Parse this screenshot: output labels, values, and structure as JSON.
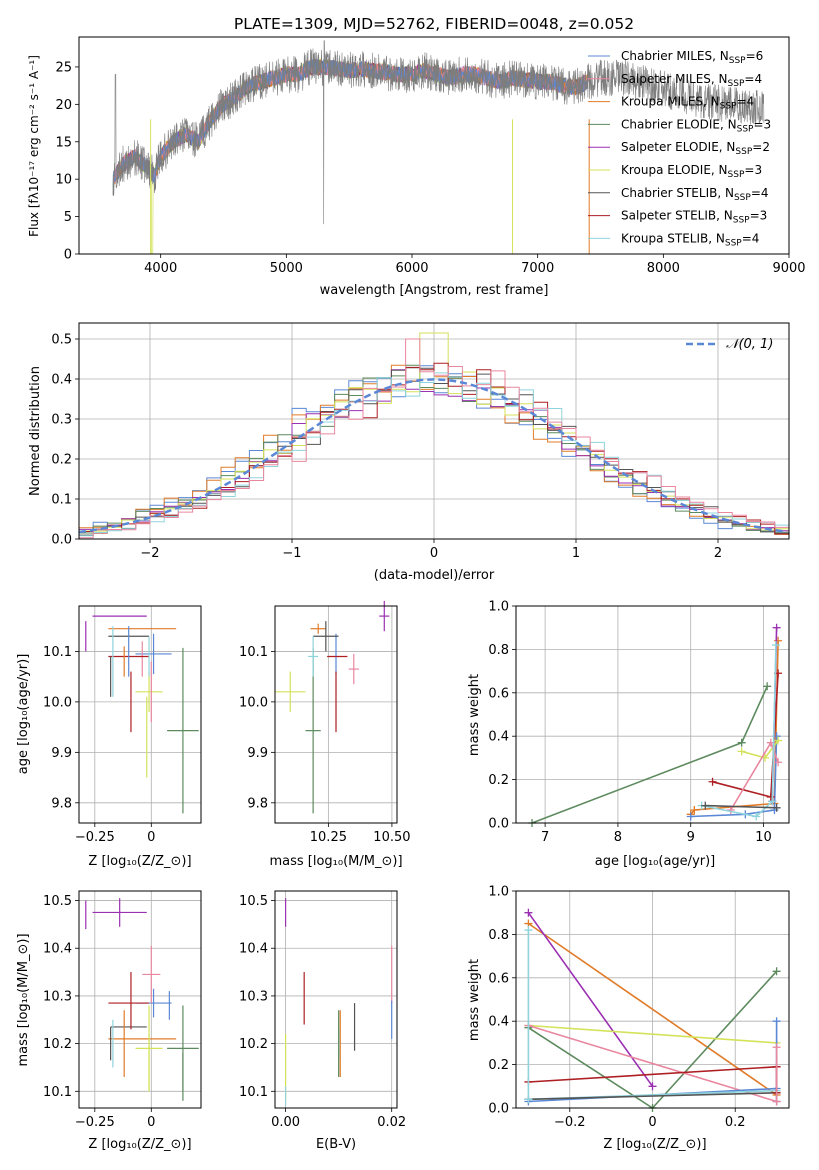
{
  "colors": {
    "cm": "#5b88d6",
    "sm": "#e9879f",
    "km": "#e07b28",
    "ce": "#5d8a5e",
    "se": "#9b30b3",
    "ke": "#d4e25a",
    "cs": "#545454",
    "ss": "#ad1f23",
    "ks": "#8fd4dd"
  },
  "chart_data": [
    {
      "id": "spectrum",
      "type": "line",
      "title": "PLATE=1309, MJD=52762, FIBERID=0048, z=0.052",
      "xlabel": "wavelength [Angstrom, rest frame]",
      "ylabel": "Flux [f$_\\lambda$10$^{-17}$ erg cm$^{-2}$ s$^{-1}$ A$^{-1}$]",
      "xlim": [
        3350,
        9000
      ],
      "ylim": [
        0,
        29
      ],
      "xticks": [
        4000,
        5000,
        6000,
        7000,
        8000,
        9000
      ],
      "yticks": [
        0,
        5,
        10,
        15,
        20,
        25
      ],
      "grid": false,
      "legend_position": "top-right",
      "continuum": {
        "x": [
          3620,
          3700,
          3800,
          3900,
          3950,
          4000,
          4100,
          4200,
          4300,
          4400,
          4500,
          4600,
          4700,
          4800,
          4900,
          5000,
          5100,
          5200,
          5300,
          5400,
          5500,
          5600,
          5700,
          5800,
          5900,
          6000,
          6100,
          6200,
          6300,
          6400,
          6500,
          6600,
          6700,
          6800,
          6900,
          7000,
          7100,
          7200,
          7300,
          7400,
          7500,
          7700,
          7900,
          8100,
          8300,
          8500,
          8800
        ],
        "y": [
          10,
          12,
          13,
          11.5,
          10.5,
          13,
          15,
          16,
          15,
          18,
          20,
          21,
          22.5,
          23,
          23.5,
          24,
          24,
          25,
          25,
          24.8,
          24.5,
          24.7,
          24.5,
          24.3,
          24,
          24,
          24.5,
          24,
          23.5,
          24,
          24,
          23.5,
          23,
          23.5,
          23.3,
          23,
          23,
          22.5,
          22.3,
          23,
          23.5,
          23.5,
          22.5,
          21.5,
          20.5,
          20,
          19.5
        ]
      },
      "series": [
        {
          "name": "Chabrier MILES, N$_{SSP}$=6",
          "color_key": "cm"
        },
        {
          "name": "Salpeter MILES, N$_{SSP}$=4",
          "color_key": "sm"
        },
        {
          "name": "Kroupa MILES, N$_{SSP}$=4",
          "color_key": "km"
        },
        {
          "name": "Chabrier ELODIE, N$_{SSP}$=3",
          "color_key": "ce"
        },
        {
          "name": "Salpeter ELODIE, N$_{SSP}$=2",
          "color_key": "se"
        },
        {
          "name": "Kroupa ELODIE, N$_{SSP}$=3",
          "color_key": "ke"
        },
        {
          "name": "Chabrier STELIB, N$_{SSP}$=4",
          "color_key": "cs"
        },
        {
          "name": "Salpeter STELIB, N$_{SSP}$=3",
          "color_key": "ss"
        },
        {
          "name": "Kroupa STELIB, N$_{SSP}$=4",
          "color_key": "ks"
        }
      ]
    },
    {
      "id": "residuals",
      "type": "line",
      "xlabel": "(data-model)/error",
      "ylabel": "Normed distribution",
      "xlim": [
        -2.5,
        2.5
      ],
      "ylim": [
        0,
        0.54
      ],
      "xticks": [
        -2,
        -1,
        0,
        1,
        2
      ],
      "yticks": [
        0.0,
        0.1,
        0.2,
        0.3,
        0.4,
        0.5
      ],
      "grid": true,
      "legend_position": "top-right",
      "legend": "$\\mathcal{N}(0,1)$",
      "bin_width": 0.1,
      "hist_color_keys": [
        "cm",
        "km",
        "ce",
        "se",
        "ke",
        "cs",
        "ss",
        "ks",
        "sm"
      ]
    },
    {
      "id": "age-vs-Z",
      "type": "scatter",
      "xlabel": "Z [log$_{10}$($Z/Z_\\odot$)]",
      "ylabel": "age  [log$_{10}$($age/yr$)]",
      "xlim": [
        -0.32,
        0.22
      ],
      "ylim": [
        9.76,
        10.19
      ],
      "xticks": [
        -0.25,
        0.0
      ],
      "yticks": [
        9.8,
        9.9,
        10.0,
        10.1
      ],
      "grid": true,
      "points": [
        {
          "key": "cm",
          "x": 0.01,
          "y": 10.095,
          "xerr": 0.08,
          "yerr": 0.04
        },
        {
          "key": "sm",
          "x": -0.04,
          "y": 10.085,
          "xerr": 0.0,
          "yerr": 0.035
        },
        {
          "key": "km",
          "x": -0.04,
          "y": 10.145,
          "xerr": 0.15,
          "yerr": 0.0
        },
        {
          "key": "ce",
          "x": 0.14,
          "y": 9.943,
          "xerr": 0.07,
          "yerr": 0.164
        },
        {
          "key": "se",
          "x": -0.14,
          "y": 10.17,
          "xerr": 0.12,
          "yerr": 0.0
        },
        {
          "key": "ke",
          "x": -0.01,
          "y": 10.02,
          "xerr": 0.06,
          "yerr": 0.04
        },
        {
          "key": "cs",
          "x": -0.1,
          "y": 10.13,
          "xerr": 0.09,
          "yerr": 0.0
        },
        {
          "key": "ss",
          "x": -0.1,
          "y": 10.09,
          "xerr": 0.09,
          "yerr": 0.0
        },
        {
          "key": "ks",
          "x": -0.01,
          "y": 10.09,
          "xerr": 0.0,
          "yerr": 0.04
        },
        {
          "key": "ss",
          "x": -0.09,
          "y": 10.0,
          "xerr": 0.0,
          "yerr": 0.06
        },
        {
          "key": "cs",
          "x": -0.18,
          "y": 10.05,
          "xerr": 0.0,
          "yerr": 0.04
        },
        {
          "key": "ks",
          "x": -0.17,
          "y": 10.08,
          "xerr": 0.0,
          "yerr": 0.07
        },
        {
          "key": "cm",
          "x": -0.1,
          "y": 10.1,
          "xerr": 0.0,
          "yerr": 0.05
        },
        {
          "key": "km",
          "x": -0.12,
          "y": 10.08,
          "xerr": 0.0,
          "yerr": 0.03
        },
        {
          "key": "se",
          "x": -0.29,
          "y": 10.13,
          "xerr": 0.0,
          "yerr": 0.03
        },
        {
          "key": "sm",
          "x": 0.0,
          "y": 10.02,
          "xerr": 0.0,
          "yerr": 0.06
        },
        {
          "key": "ke",
          "x": -0.02,
          "y": 9.93,
          "xerr": 0.0,
          "yerr": 0.08
        }
      ]
    },
    {
      "id": "age-vs-mass",
      "type": "scatter",
      "xlabel": "mass [log$_{10}$($M/M_\\odot$)]",
      "xlim": [
        10.04,
        10.52
      ],
      "ylim": [
        9.76,
        10.19
      ],
      "xticks": [
        10.25,
        10.5
      ],
      "yticks": [
        9.8,
        9.9,
        10.0,
        10.1
      ],
      "grid": true,
      "points": [
        {
          "key": "cm",
          "x": 10.28,
          "y": 10.095,
          "xerr": 0.0,
          "yerr": 0.04
        },
        {
          "key": "sm",
          "x": 10.35,
          "y": 10.065,
          "xerr": 0.02,
          "yerr": 0.03
        },
        {
          "key": "km",
          "x": 10.21,
          "y": 10.145,
          "xerr": 0.03,
          "yerr": 0.01
        },
        {
          "key": "ce",
          "x": 10.19,
          "y": 9.943,
          "xerr": 0.03,
          "yerr": 0.164
        },
        {
          "key": "se",
          "x": 10.47,
          "y": 10.17,
          "xerr": 0.02,
          "yerr": 0.03
        },
        {
          "key": "ke",
          "x": 10.1,
          "y": 10.02,
          "xerr": 0.06,
          "yerr": 0.04
        },
        {
          "key": "cs",
          "x": 10.24,
          "y": 10.13,
          "xerr": 0.05,
          "yerr": 0.03
        },
        {
          "key": "ss",
          "x": 10.285,
          "y": 10.09,
          "xerr": 0.04,
          "yerr": 0.0
        },
        {
          "key": "ks",
          "x": 10.19,
          "y": 10.09,
          "xerr": 0.02,
          "yerr": 0.04
        },
        {
          "key": "ss",
          "x": 10.28,
          "y": 10.0,
          "xerr": 0.0,
          "yerr": 0.06
        }
      ]
    },
    {
      "id": "massweight-vs-age",
      "type": "line",
      "xlabel": "age  [log$_{10}$($age/yr$)]",
      "ylabel": "mass weight",
      "xlim": [
        6.6,
        10.35
      ],
      "ylim": [
        0,
        1.0
      ],
      "xticks": [
        7,
        8,
        9,
        10
      ],
      "yticks": [
        0.0,
        0.2,
        0.4,
        0.6,
        0.8,
        1.0
      ],
      "grid": true,
      "series": [
        {
          "key": "ce",
          "x": [
            6.82,
            9.7,
            10.05
          ],
          "y": [
            0.0,
            0.37,
            0.63
          ]
        },
        {
          "key": "km",
          "x": [
            9.0,
            9.05,
            10.15,
            10.2
          ],
          "y": [
            0.04,
            0.06,
            0.09,
            0.84
          ]
        },
        {
          "key": "cm",
          "x": [
            9.0,
            9.75,
            10.15,
            10.18
          ],
          "y": [
            0.03,
            0.04,
            0.06,
            0.4
          ]
        },
        {
          "key": "ss",
          "x": [
            9.3,
            10.1,
            10.2
          ],
          "y": [
            0.19,
            0.12,
            0.69
          ]
        },
        {
          "key": "se",
          "x": [
            10.12,
            10.18
          ],
          "y": [
            0.1,
            0.9
          ]
        },
        {
          "key": "ke",
          "x": [
            9.7,
            10.02,
            10.2
          ],
          "y": [
            0.33,
            0.3,
            0.38
          ]
        },
        {
          "key": "sm",
          "x": [
            9.55,
            10.1,
            10.2
          ],
          "y": [
            0.06,
            0.37,
            0.28
          ]
        },
        {
          "key": "ks",
          "x": [
            9.15,
            9.9,
            10.12,
            10.17
          ],
          "y": [
            0.08,
            0.03,
            0.1,
            0.82
          ]
        },
        {
          "key": "cs",
          "x": [
            9.2,
            10.18
          ],
          "y": [
            0.08,
            0.07
          ]
        }
      ]
    },
    {
      "id": "mass-vs-Z",
      "type": "scatter",
      "xlabel": "Z [log$_{10}$($Z/Z_\\odot$)]",
      "ylabel": "mass [log$_{10}$($M/M_\\odot$)]",
      "xlim": [
        -0.32,
        0.22
      ],
      "ylim": [
        10.065,
        10.52
      ],
      "xticks": [
        -0.25,
        0.0
      ],
      "yticks": [
        10.1,
        10.2,
        10.3,
        10.4,
        10.5
      ],
      "grid": true,
      "points": [
        {
          "key": "cm",
          "x": 0.01,
          "y": 10.285,
          "xerr": 0.08,
          "yerr": 0.03
        },
        {
          "key": "sm",
          "x": 0.0,
          "y": 10.345,
          "xerr": 0.04,
          "yerr": 0.06
        },
        {
          "key": "km",
          "x": -0.04,
          "y": 10.21,
          "xerr": 0.15,
          "yerr": 0.0
        },
        {
          "key": "ce",
          "x": 0.14,
          "y": 10.19,
          "xerr": 0.07,
          "yerr": 0.09
        },
        {
          "key": "se",
          "x": -0.14,
          "y": 10.475,
          "xerr": 0.12,
          "yerr": 0.03
        },
        {
          "key": "ke",
          "x": -0.01,
          "y": 10.19,
          "xerr": 0.06,
          "yerr": 0.09
        },
        {
          "key": "cs",
          "x": -0.1,
          "y": 10.235,
          "xerr": 0.08,
          "yerr": 0.0
        },
        {
          "key": "ss",
          "x": -0.1,
          "y": 10.285,
          "xerr": 0.09,
          "yerr": 0.0
        },
        {
          "key": "ks",
          "x": -0.17,
          "y": 10.2,
          "xerr": 0.0,
          "yerr": 0.05
        },
        {
          "key": "ss",
          "x": -0.09,
          "y": 10.29,
          "xerr": 0.0,
          "yerr": 0.06
        },
        {
          "key": "cs",
          "x": -0.18,
          "y": 10.2,
          "xerr": 0.0,
          "yerr": 0.035
        },
        {
          "key": "km",
          "x": -0.12,
          "y": 10.2,
          "xerr": 0.0,
          "yerr": 0.07
        },
        {
          "key": "se",
          "x": -0.29,
          "y": 10.47,
          "xerr": 0.0,
          "yerr": 0.03
        },
        {
          "key": "ke",
          "x": -0.01,
          "y": 10.16,
          "xerr": 0.0,
          "yerr": 0.06
        },
        {
          "key": "ce",
          "x": 0.14,
          "y": 10.13,
          "xerr": 0.0,
          "yerr": 0.05
        },
        {
          "key": "cm",
          "x": 0.08,
          "y": 10.28,
          "xerr": 0.0,
          "yerr": 0.03
        }
      ]
    },
    {
      "id": "mass-vs-ebv",
      "type": "scatter",
      "xlabel": "E(B-V)",
      "xlim": [
        -0.002,
        0.021
      ],
      "ylim": [
        10.065,
        10.52
      ],
      "xticks": [
        0.0,
        0.02
      ],
      "yticks": [
        10.1,
        10.2,
        10.3,
        10.4,
        10.5
      ],
      "grid": true,
      "points": [
        {
          "key": "se",
          "x": 0.0,
          "y": 10.475,
          "xerr": 0.0,
          "yerr": 0.03
        },
        {
          "key": "ke",
          "x": 0.0,
          "y": 10.15,
          "xerr": 0.0,
          "yerr": 0.07
        },
        {
          "key": "ks",
          "x": 0.0,
          "y": 10.09,
          "xerr": 0.0,
          "yerr": 0.02
        },
        {
          "key": "ss",
          "x": 0.0035,
          "y": 10.295,
          "xerr": 0.0,
          "yerr": 0.055
        },
        {
          "key": "ce",
          "x": 0.01,
          "y": 10.2,
          "xerr": 0.0,
          "yerr": 0.07
        },
        {
          "key": "ks",
          "x": 0.0102,
          "y": 10.2,
          "xerr": 0.0,
          "yerr": 0.03
        },
        {
          "key": "km",
          "x": 0.0103,
          "y": 10.2,
          "xerr": 0.0,
          "yerr": 0.07
        },
        {
          "key": "cs",
          "x": 0.013,
          "y": 10.235,
          "xerr": 0.0,
          "yerr": 0.05
        },
        {
          "key": "sm",
          "x": 0.02,
          "y": 10.345,
          "xerr": 0.0,
          "yerr": 0.06
        },
        {
          "key": "cm",
          "x": 0.02,
          "y": 10.25,
          "xerr": 0.0,
          "yerr": 0.04
        }
      ]
    },
    {
      "id": "massweight-vs-Z",
      "type": "line",
      "xlabel": "Z [log$_{10}$($Z/Z_\\odot$)]",
      "ylabel": "mass weight",
      "xlim": [
        -0.33,
        0.33
      ],
      "ylim": [
        0,
        1.0
      ],
      "xticks": [
        -0.2,
        0.0,
        0.2
      ],
      "yticks": [
        0.0,
        0.2,
        0.4,
        0.6,
        0.8,
        1.0
      ],
      "grid": true,
      "series": [
        {
          "key": "km",
          "x": [
            -0.3,
            0.3
          ],
          "y": [
            0.85,
            0.06
          ]
        },
        {
          "key": "se",
          "x": [
            -0.3,
            0.0
          ],
          "y": [
            0.9,
            0.1
          ]
        },
        {
          "key": "ce",
          "x": [
            -0.3,
            0.0,
            0.3
          ],
          "y": [
            0.37,
            0.0,
            0.63
          ]
        },
        {
          "key": "ke",
          "x": [
            -0.3,
            0.3
          ],
          "y": [
            0.38,
            0.3
          ]
        },
        {
          "key": "sm",
          "x": [
            -0.3,
            0.3
          ],
          "y": [
            0.38,
            0.03
          ]
        },
        {
          "key": "ss",
          "x": [
            -0.3,
            0.3
          ],
          "y": [
            0.12,
            0.19
          ]
        },
        {
          "key": "cm",
          "x": [
            -0.3,
            0.3
          ],
          "y": [
            0.03,
            0.09
          ]
        },
        {
          "key": "ks",
          "x": [
            -0.3,
            0.3
          ],
          "y": [
            0.04,
            0.08
          ]
        },
        {
          "key": "cs",
          "x": [
            -0.3,
            0.3
          ],
          "y": [
            0.04,
            0.07
          ]
        },
        {
          "key": "cm",
          "x": [
            0.3,
            0.3
          ],
          "y": [
            0.03,
            0.4
          ]
        },
        {
          "key": "ks",
          "x": [
            -0.3,
            -0.3
          ],
          "y": [
            0.04,
            0.82
          ]
        },
        {
          "key": "ss",
          "x": [
            0.3,
            0.3
          ],
          "y": [
            0.07,
            0.19
          ]
        },
        {
          "key": "sm",
          "x": [
            0.3,
            0.3
          ],
          "y": [
            0.03,
            0.28
          ]
        }
      ]
    }
  ]
}
